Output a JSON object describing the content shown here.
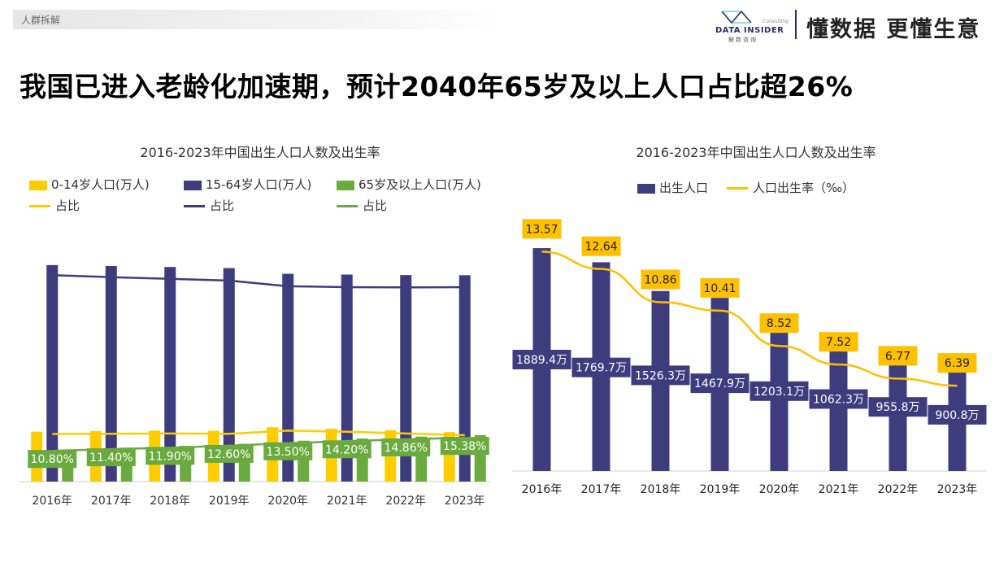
{
  "header": {
    "tag": "人群拆解",
    "logo_brand": "DATA INSIDER",
    "logo_cn": "解数咨询",
    "logo_sub": "Consulting",
    "slogan": "懂数据 更懂生意"
  },
  "headline": "我国已进入老龄化加速期，预计2040年65岁及以上人口占比超26%",
  "colors": {
    "yellow": "#FFCC00",
    "navy": "#3F3C7E",
    "green": "#6AAA3F",
    "axis": "#D0D0D0"
  },
  "chart_data": [
    {
      "type": "bar",
      "title": "2016-2023年中国出生人口人数及出生率",
      "categories": [
        "2016年",
        "2017年",
        "2018年",
        "2019年",
        "2020年",
        "2021年",
        "2022年",
        "2023年"
      ],
      "series": [
        {
          "name": "0-14岁人口(万人)",
          "kind": "bar",
          "color": "#FFCC00",
          "values": [
            23252,
            23522,
            23751,
            23689,
            25338,
            24678,
            23908,
            23063
          ]
        },
        {
          "name": "15-64岁人口(万人)",
          "kind": "bar",
          "color": "#3F3C7E",
          "values": [
            100943,
            100528,
            100065,
            99552,
            96871,
            96526,
            96289,
            96228
          ]
        },
        {
          "name": "65岁及以上人口(万人)",
          "kind": "bar",
          "color": "#6AAA3F",
          "values": [
            15003,
            15831,
            16658,
            17603,
            19064,
            20056,
            20978,
            21676
          ]
        },
        {
          "name": "占比",
          "kind": "line",
          "color": "#FFCC00",
          "values": [
            16.7,
            16.8,
            16.9,
            16.8,
            17.9,
            17.5,
            16.9,
            16.3
          ]
        },
        {
          "name": "占比",
          "kind": "line",
          "color": "#3F3C7E",
          "values": [
            72.5,
            71.8,
            71.2,
            70.6,
            68.6,
            68.3,
            68.2,
            68.3
          ]
        },
        {
          "name": "占比",
          "kind": "line",
          "color": "#6AAA3F",
          "values": [
            10.8,
            11.4,
            11.9,
            12.6,
            13.5,
            14.2,
            14.86,
            15.38
          ],
          "labels": [
            "10.80%",
            "11.40%",
            "11.90%",
            "12.60%",
            "13.50%",
            "14.20%",
            "14.86%",
            "15.38%"
          ]
        }
      ],
      "legend_position": "top",
      "grid": false
    },
    {
      "type": "bar",
      "title": "2016-2023年中国出生人口人数及出生率",
      "categories": [
        "2016年",
        "2017年",
        "2018年",
        "2019年",
        "2020年",
        "2021年",
        "2022年",
        "2023年"
      ],
      "series": [
        {
          "name": "出生人口",
          "kind": "bar",
          "color": "#3F3C7E",
          "values": [
            1889.4,
            1769.7,
            1526.3,
            1467.9,
            1203.1,
            1062.3,
            955.8,
            900.8
          ],
          "labels": [
            "1889.4万",
            "1769.7万",
            "1526.3万",
            "1467.9万",
            "1203.1万",
            "1062.3万",
            "955.8万",
            "900.8万"
          ]
        },
        {
          "name": "人口出生率（‰）",
          "kind": "line",
          "color": "#FFC000",
          "values": [
            13.57,
            12.64,
            10.86,
            10.41,
            8.52,
            7.52,
            6.77,
            6.39
          ],
          "labels": [
            "13.57",
            "12.64",
            "10.86",
            "10.41",
            "8.52",
            "7.52",
            "6.77",
            "6.39"
          ]
        }
      ],
      "legend_position": "top",
      "grid": false
    }
  ]
}
